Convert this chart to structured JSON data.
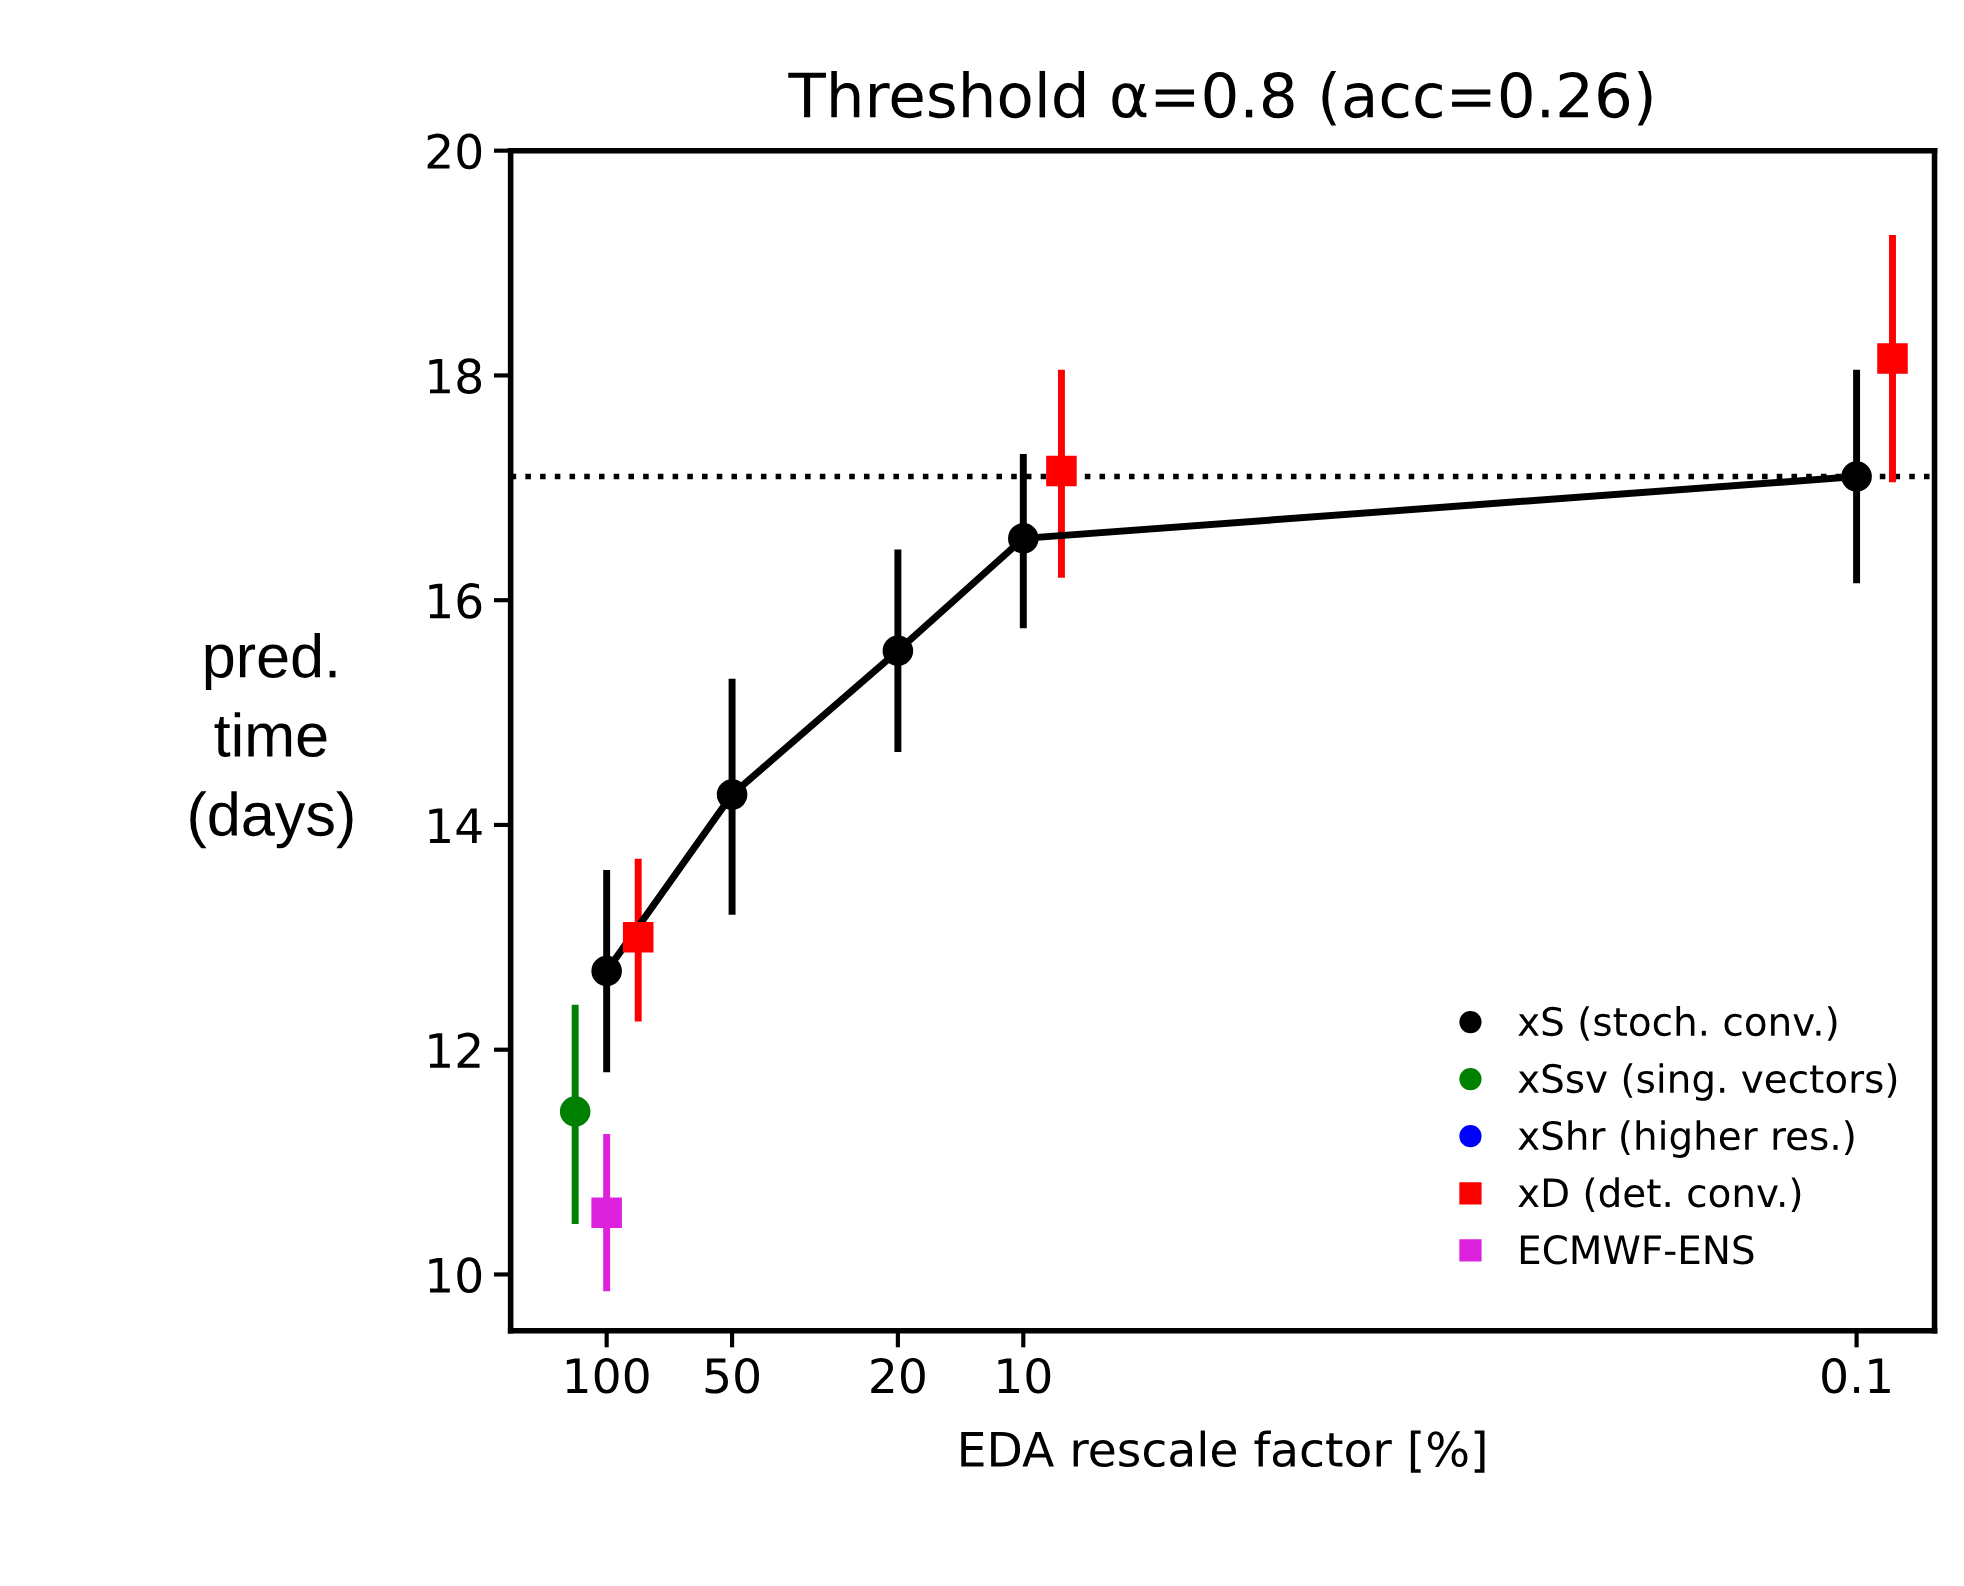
{
  "chart_data": {
    "type": "scatter",
    "title": "Threshold α=0.8 (acc=0.26)",
    "xlabel": "EDA rescale factor [%]",
    "ylabel": "pred.\ntime\n(days)",
    "log": "x",
    "xlim": [
      170,
      0.065
    ],
    "xticks": [
      100,
      50,
      20,
      10,
      0.1
    ],
    "ylim": [
      9.5,
      20
    ],
    "yticks": [
      10,
      12,
      14,
      16,
      18,
      20
    ],
    "grid": false,
    "legend": "bottom right",
    "ref_lines": [
      {
        "axis": "y",
        "value": 17.1,
        "line_style": "dotted",
        "color": "#000000"
      }
    ],
    "series": [
      {
        "name": "xS (stoch. conv.)",
        "type": "line",
        "color": "#000000",
        "marker": "circle",
        "line_style": "solid",
        "x": [
          100,
          50,
          20,
          10,
          0.1
        ],
        "values": [
          12.7,
          14.27,
          15.55,
          16.55,
          17.1
        ],
        "errors": [
          [
            11.8,
            13.6
          ],
          [
            13.2,
            15.3
          ],
          [
            14.65,
            16.45
          ],
          [
            15.75,
            17.3
          ],
          [
            16.15,
            18.05
          ]
        ]
      },
      {
        "name": "xSsv (sing. vectors)",
        "color": "#008000",
        "marker": "circle",
        "x": [
          119
        ],
        "values": [
          11.45
        ],
        "errors": [
          [
            10.45,
            12.4
          ]
        ]
      },
      {
        "name": "xShr (higher res.)",
        "color": "#0000ff",
        "marker": "circle"
      },
      {
        "name": "xD (det. conv.)",
        "color": "#ff0000",
        "marker": "square",
        "x": [
          84,
          8.1,
          0.082
        ],
        "values": [
          13.0,
          17.15,
          18.15
        ],
        "errors": [
          [
            12.25,
            13.7
          ],
          [
            16.2,
            18.05
          ],
          [
            17.05,
            19.25
          ]
        ]
      },
      {
        "name": "ECMWF-ENS",
        "color": "#dd22dd",
        "marker": "square",
        "x": [
          100
        ],
        "values": [
          10.55
        ],
        "errors": [
          [
            9.85,
            11.25
          ]
        ]
      }
    ]
  }
}
